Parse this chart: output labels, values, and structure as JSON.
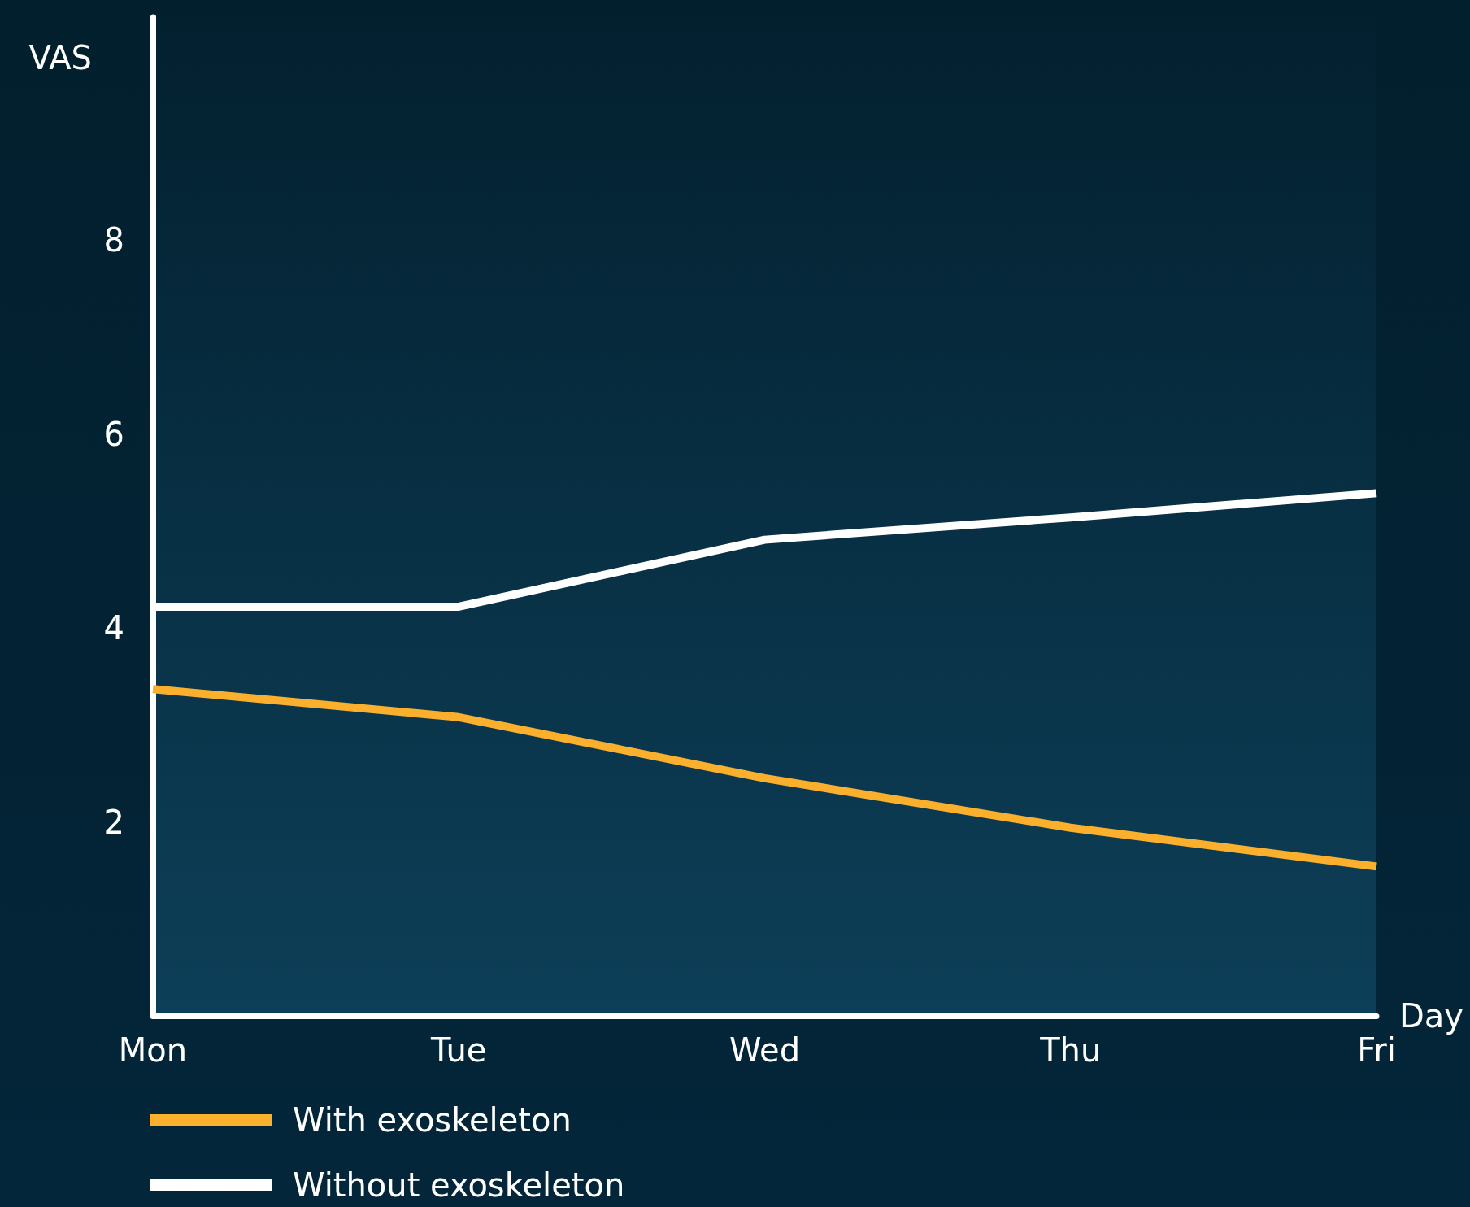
{
  "chart_data": {
    "type": "line",
    "xlabel": "Day",
    "ylabel": "VAS",
    "categories": [
      "Mon",
      "Tue",
      "Wed",
      "Thu",
      "Fri"
    ],
    "ylim": [
      0,
      10.3
    ],
    "yticks": [
      2,
      4,
      6,
      8
    ],
    "series": [
      {
        "name": "With exoskeleton",
        "color": "#fbb02d",
        "values": [
          3.37,
          3.08,
          2.45,
          1.94,
          1.54
        ]
      },
      {
        "name": "Without exoskeleton",
        "color": "#ffffff",
        "values": [
          4.22,
          4.22,
          4.91,
          5.14,
          5.39
        ]
      }
    ],
    "grid": false,
    "marker": "none",
    "line_style": "solid",
    "legend": "bottom left"
  }
}
